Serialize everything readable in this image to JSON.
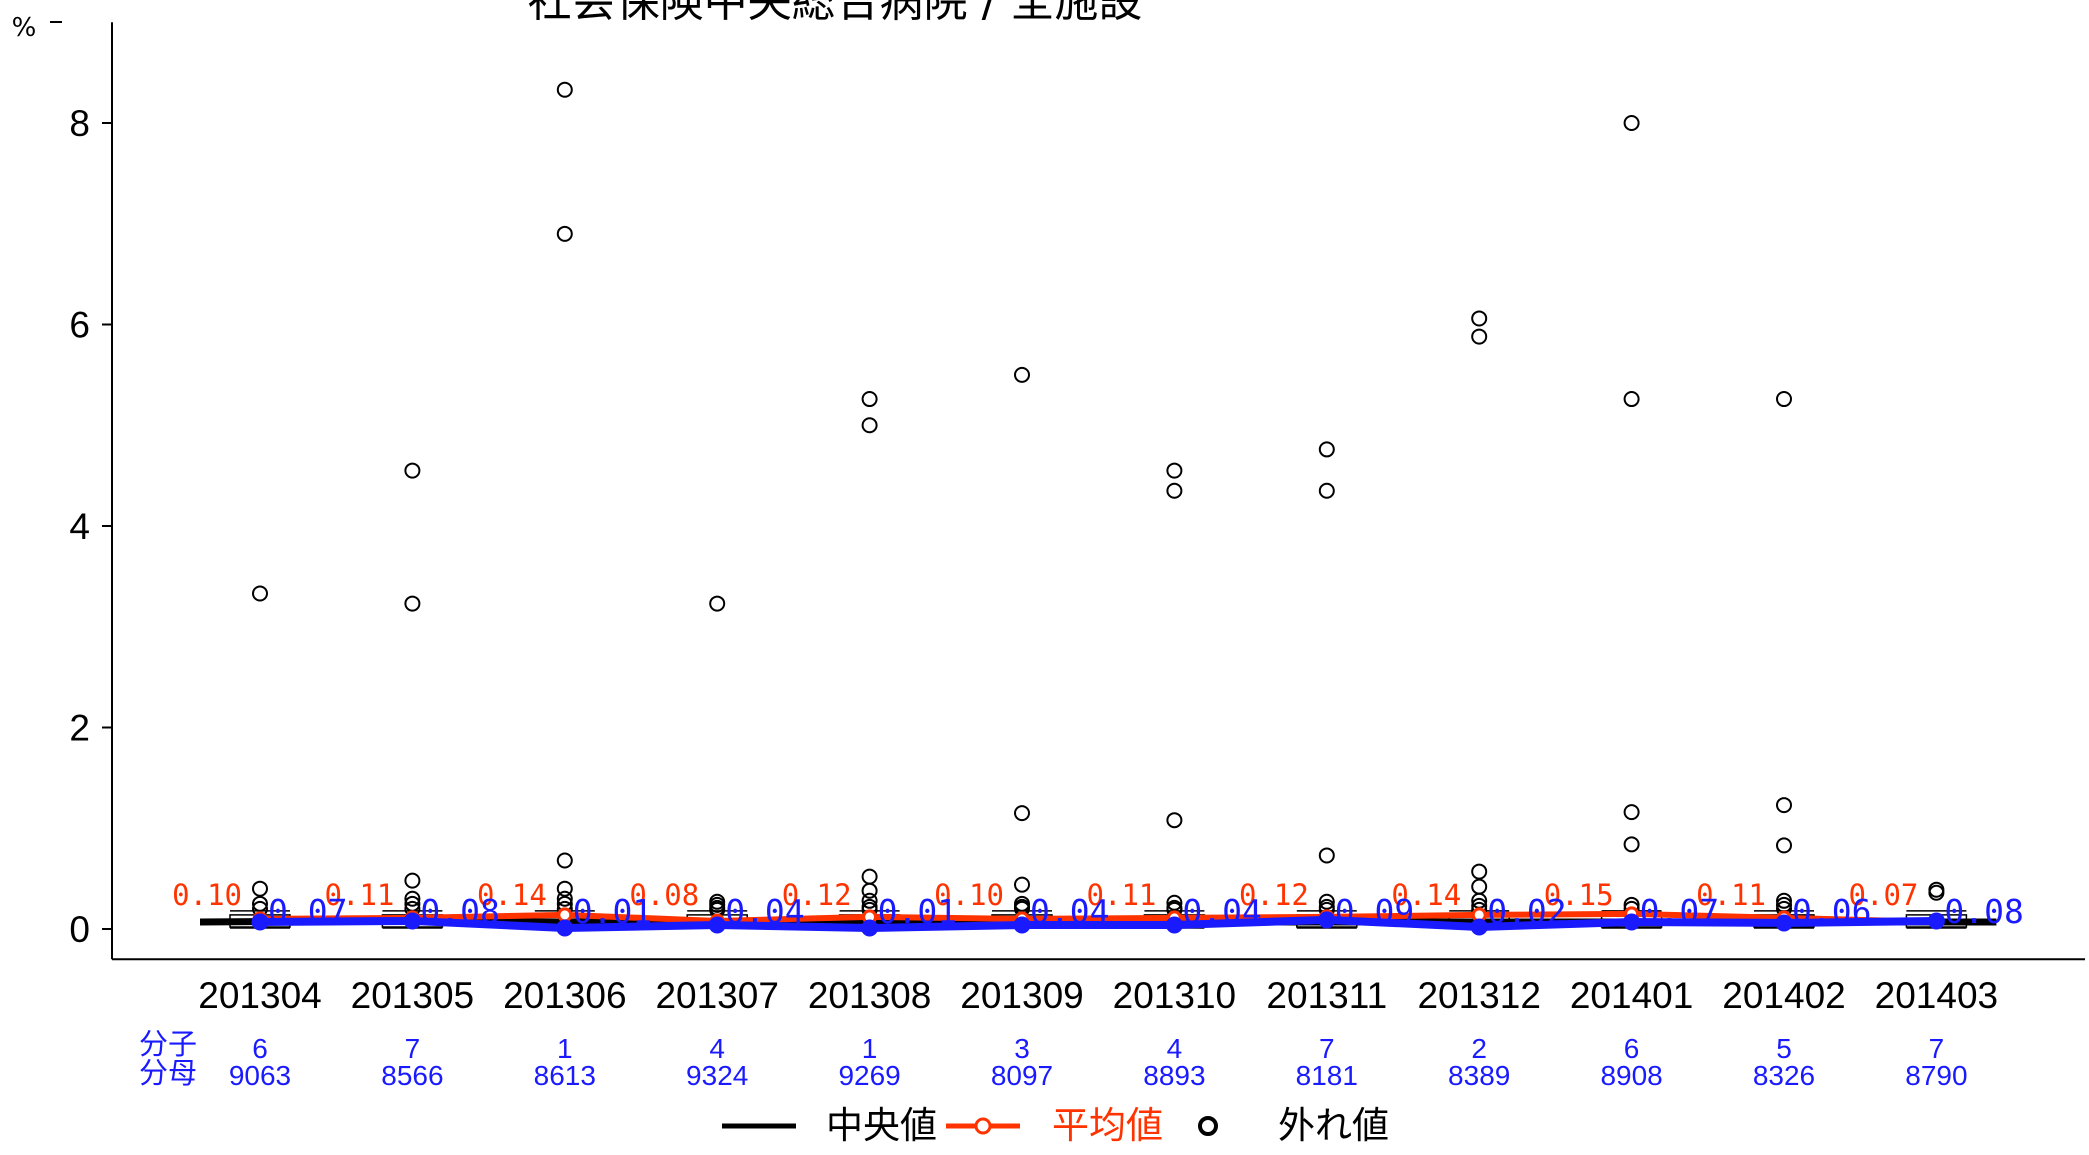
{
  "chart_data": {
    "type": "line",
    "title": "社会保険中央総合病院 / 全施設",
    "y_unit": "%",
    "ylim": [
      0,
      9
    ],
    "yticks": [
      0,
      2,
      4,
      6,
      8
    ],
    "grid": false,
    "categories": [
      "201304",
      "201305",
      "201306",
      "201307",
      "201308",
      "201309",
      "201310",
      "201311",
      "201312",
      "201401",
      "201402",
      "201403"
    ],
    "series": [
      {
        "name": "中央値",
        "color": "#000000",
        "values": [
          0.07,
          0.08,
          0.07,
          0.07,
          0.07,
          0.07,
          0.07,
          0.07,
          0.07,
          0.07,
          0.07,
          0.07
        ]
      },
      {
        "name": "平均値",
        "color": "#ff3300",
        "values": [
          0.1,
          0.11,
          0.14,
          0.08,
          0.12,
          0.1,
          0.11,
          0.12,
          0.14,
          0.15,
          0.11,
          0.07
        ],
        "labels": [
          "0.10",
          "0.11",
          "0.14",
          "0.08",
          "0.12",
          "0.10",
          "0.11",
          "0.12",
          "0.14",
          "0.15",
          "0.11",
          "0.07"
        ]
      },
      {
        "name": "自院",
        "color": "#1a1aff",
        "values": [
          0.07,
          0.08,
          0.01,
          0.04,
          0.01,
          0.04,
          0.04,
          0.09,
          0.02,
          0.07,
          0.06,
          0.08
        ],
        "labels": [
          "0.07",
          "0.08",
          "0.01",
          "0.04",
          "0.01",
          "0.04",
          "0.04",
          "0.09",
          "0.02",
          "0.07",
          "0.06",
          "0.08"
        ]
      }
    ],
    "outliers": [
      [
        3.33,
        0.4,
        0.25,
        0.2
      ],
      [
        4.55,
        3.23,
        0.48,
        0.3,
        0.25,
        0.2
      ],
      [
        8.33,
        6.9,
        0.68,
        0.4,
        0.3,
        0.25,
        0.2
      ],
      [
        3.23,
        0.27,
        0.24,
        0.21,
        0.19
      ],
      [
        5.26,
        5.0,
        0.52,
        0.38,
        0.28,
        0.22,
        0.19
      ],
      [
        5.5,
        1.15,
        0.44,
        0.25,
        0.22,
        0.2
      ],
      [
        4.55,
        4.35,
        1.08,
        0.26,
        0.21,
        0.19
      ],
      [
        4.76,
        4.35,
        0.73,
        0.27,
        0.22,
        0.19
      ],
      [
        6.06,
        5.88,
        0.57,
        0.42,
        0.28,
        0.23,
        0.19
      ],
      [
        8.0,
        5.26,
        1.16,
        0.84,
        0.24,
        0.2
      ],
      [
        5.26,
        1.23,
        0.83,
        0.28,
        0.24,
        0.2
      ],
      [
        0.39,
        0.36
      ]
    ],
    "numerator_label": "分子",
    "denominator_label": "分母",
    "numerators": [
      "6",
      "7",
      "1",
      "4",
      "1",
      "3",
      "4",
      "7",
      "2",
      "6",
      "5",
      "7"
    ],
    "denominators": [
      "9063",
      "8566",
      "8613",
      "9324",
      "9269",
      "8097",
      "8893",
      "8181",
      "8389",
      "8908",
      "8326",
      "8790"
    ],
    "legend": {
      "position": "bottom",
      "items": [
        {
          "label": "中央値",
          "color": "#000000",
          "text_color": "#000000"
        },
        {
          "label": "平均値",
          "color": "#ff3300",
          "text_color": "#ff3300"
        },
        {
          "label": "外れ値",
          "color": "#000000",
          "text_color": "#000000"
        }
      ]
    }
  }
}
